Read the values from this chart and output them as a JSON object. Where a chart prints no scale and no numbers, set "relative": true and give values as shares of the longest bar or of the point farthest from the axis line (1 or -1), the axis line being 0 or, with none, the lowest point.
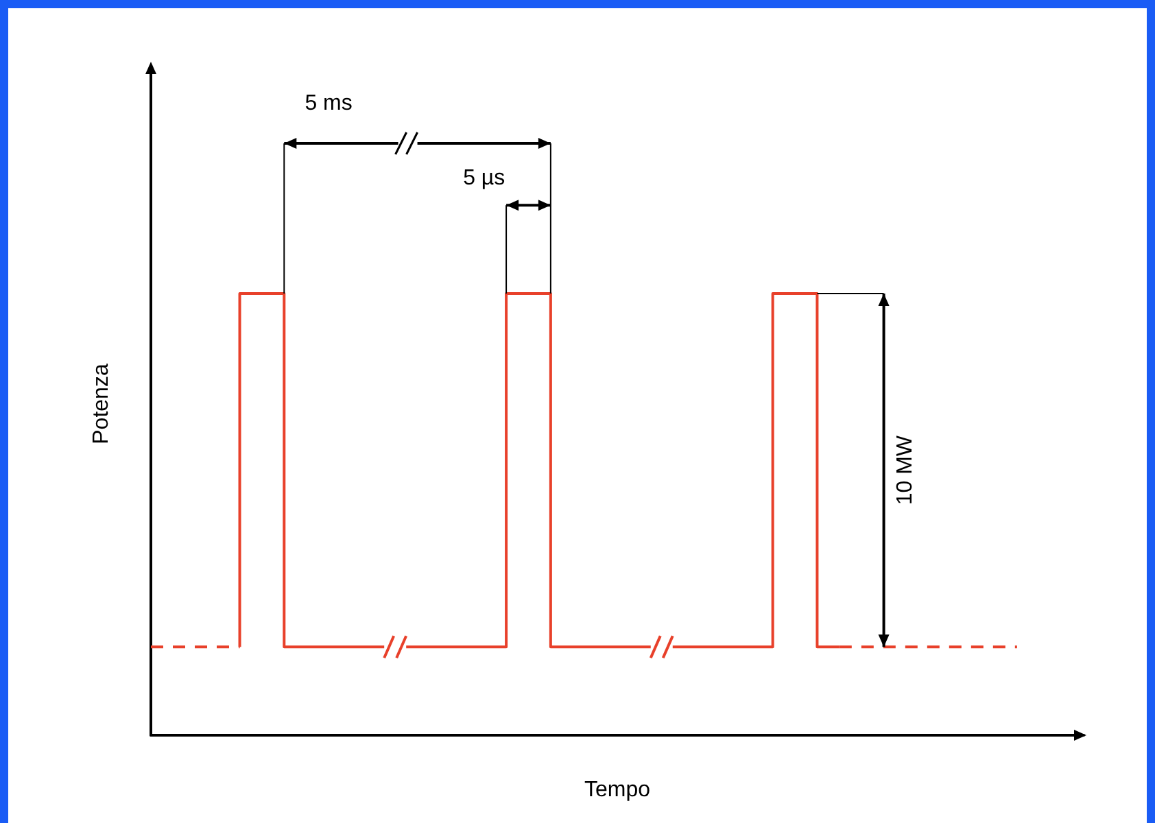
{
  "chart_data": {
    "type": "step",
    "relative": true,
    "xlabel": "Tempo",
    "ylabel": "Potenza",
    "grid": false,
    "marker": "none",
    "annotations": [
      "5 ms",
      "5 µs",
      "10 MW"
    ],
    "categories": [
      null,
      null,
      null,
      null,
      null,
      null,
      null,
      null,
      null,
      null,
      null,
      null,
      null,
      null,
      null,
      null,
      null,
      null,
      null,
      null,
      null,
      null,
      null,
      null,
      null,
      null,
      null,
      null,
      null,
      null,
      null,
      null,
      null,
      null,
      null,
      null,
      null,
      null,
      null,
      null,
      null,
      null,
      null
    ],
    "series": [
      {
        "color": "#e8402a",
        "line_style": "dashed",
        "values": [
          0.2,
          0.2,
          0.2,
          0.2,
          0.2,
          null,
          null,
          null,
          null,
          null,
          null,
          null,
          null,
          null,
          null,
          null,
          null,
          null,
          null,
          null,
          null,
          null,
          null,
          null,
          null,
          null,
          null,
          null,
          null,
          null,
          null,
          null,
          null,
          null,
          null,
          null,
          null,
          null,
          null,
          null,
          null,
          null,
          null
        ]
      },
      {
        "color": "#e8402a",
        "line_style": "solid",
        "values": [
          null,
          null,
          null,
          null,
          0.2,
          1,
          1,
          0.2,
          0.2,
          0.2,
          0.2,
          0.2,
          0.2,
          0.2,
          0.2,
          0.2,
          0.2,
          1,
          1,
          0.2,
          0.2,
          0.2,
          0.2,
          0.2,
          0.2,
          0.2,
          0.2,
          0.2,
          0.2,
          1,
          1,
          0.2,
          null,
          null,
          null,
          null,
          null,
          null,
          null,
          null,
          null,
          null,
          null
        ]
      },
      {
        "color": "#e8402a",
        "line_style": "dashed",
        "values": [
          null,
          null,
          null,
          null,
          null,
          null,
          null,
          null,
          null,
          null,
          null,
          null,
          null,
          null,
          null,
          null,
          null,
          null,
          null,
          null,
          null,
          null,
          null,
          null,
          null,
          null,
          null,
          null,
          null,
          null,
          null,
          0.2,
          0.2,
          0.2,
          0.2,
          0.2,
          0.2,
          0.2,
          0.2,
          0.2,
          null,
          null,
          null
        ]
      }
    ]
  }
}
